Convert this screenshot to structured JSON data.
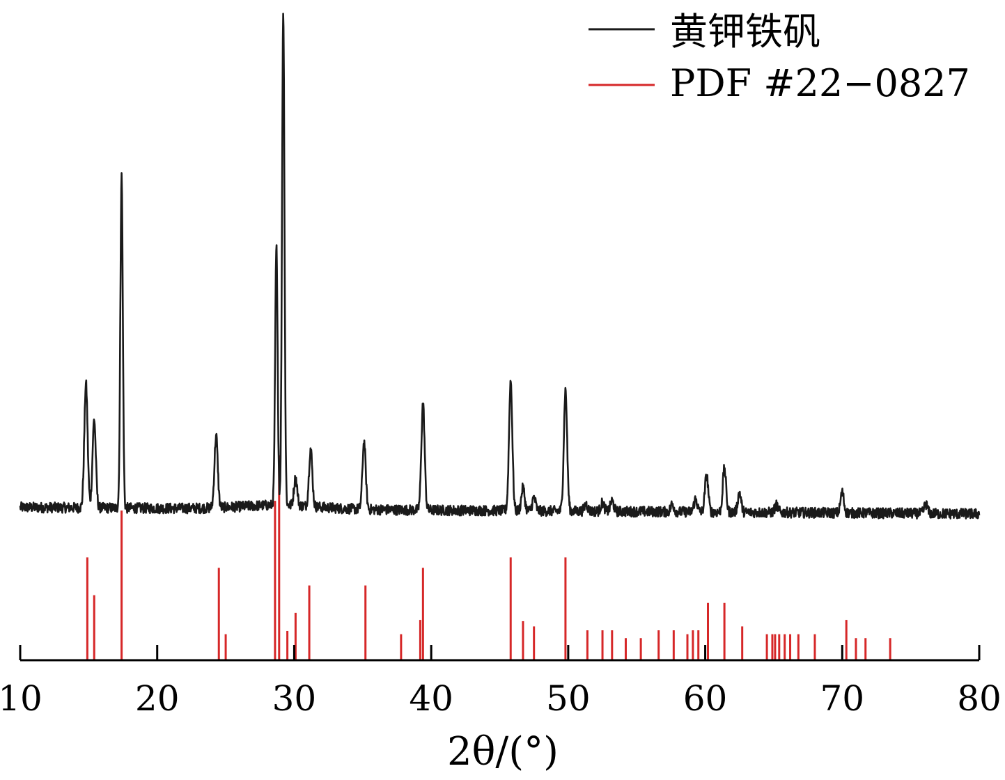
{
  "chart_data": {
    "type": "line",
    "title": "",
    "xlabel": "2θ/(°)",
    "ylabel": "",
    "xlim": [
      10,
      80
    ],
    "ylim": [
      0,
      1
    ],
    "grid": false,
    "legend_position": "top-right",
    "x_ticks": [
      10,
      20,
      30,
      40,
      50,
      60,
      70,
      80
    ],
    "tick_labels": [
      "10",
      "20",
      "30",
      "40",
      "50",
      "60",
      "70",
      "80"
    ],
    "series": [
      {
        "name": "黄钾铁矾",
        "type": "line",
        "color": "#1a1a1a",
        "baseline_start": 0.235,
        "baseline_end": 0.225,
        "peaks": [
          {
            "x": 14.8,
            "y": 0.425
          },
          {
            "x": 15.4,
            "y": 0.37
          },
          {
            "x": 17.4,
            "y": 0.745
          },
          {
            "x": 24.3,
            "y": 0.345
          },
          {
            "x": 28.7,
            "y": 0.635
          },
          {
            "x": 29.2,
            "y": 1.0
          },
          {
            "x": 30.1,
            "y": 0.28
          },
          {
            "x": 31.2,
            "y": 0.325
          },
          {
            "x": 35.1,
            "y": 0.335
          },
          {
            "x": 39.4,
            "y": 0.395
          },
          {
            "x": 45.8,
            "y": 0.43
          },
          {
            "x": 46.7,
            "y": 0.265
          },
          {
            "x": 47.5,
            "y": 0.25
          },
          {
            "x": 49.8,
            "y": 0.415
          },
          {
            "x": 51.3,
            "y": 0.24
          },
          {
            "x": 52.5,
            "y": 0.242
          },
          {
            "x": 53.2,
            "y": 0.245
          },
          {
            "x": 57.6,
            "y": 0.24
          },
          {
            "x": 59.3,
            "y": 0.248
          },
          {
            "x": 60.1,
            "y": 0.285
          },
          {
            "x": 61.4,
            "y": 0.295
          },
          {
            "x": 62.5,
            "y": 0.258
          },
          {
            "x": 65.2,
            "y": 0.238
          },
          {
            "x": 70.0,
            "y": 0.258
          },
          {
            "x": 76.1,
            "y": 0.24
          }
        ]
      },
      {
        "name": "PDF #22−0827",
        "type": "stick",
        "color": "#d62728",
        "sticks": [
          {
            "x": 14.9,
            "y": 0.158
          },
          {
            "x": 15.4,
            "y": 0.1
          },
          {
            "x": 17.4,
            "y": 0.23
          },
          {
            "x": 24.5,
            "y": 0.142
          },
          {
            "x": 25.0,
            "y": 0.04
          },
          {
            "x": 28.6,
            "y": 0.245
          },
          {
            "x": 28.9,
            "y": 0.315
          },
          {
            "x": 29.5,
            "y": 0.045
          },
          {
            "x": 30.1,
            "y": 0.073
          },
          {
            "x": 31.1,
            "y": 0.115
          },
          {
            "x": 35.2,
            "y": 0.115
          },
          {
            "x": 37.8,
            "y": 0.04
          },
          {
            "x": 39.2,
            "y": 0.062
          },
          {
            "x": 39.4,
            "y": 0.142
          },
          {
            "x": 45.8,
            "y": 0.158
          },
          {
            "x": 46.7,
            "y": 0.06
          },
          {
            "x": 47.5,
            "y": 0.052
          },
          {
            "x": 49.8,
            "y": 0.158
          },
          {
            "x": 51.4,
            "y": 0.046
          },
          {
            "x": 52.5,
            "y": 0.046
          },
          {
            "x": 53.2,
            "y": 0.046
          },
          {
            "x": 54.2,
            "y": 0.034
          },
          {
            "x": 55.3,
            "y": 0.034
          },
          {
            "x": 56.6,
            "y": 0.046
          },
          {
            "x": 57.7,
            "y": 0.046
          },
          {
            "x": 58.7,
            "y": 0.04
          },
          {
            "x": 59.1,
            "y": 0.046
          },
          {
            "x": 59.5,
            "y": 0.046
          },
          {
            "x": 60.2,
            "y": 0.088
          },
          {
            "x": 61.4,
            "y": 0.088
          },
          {
            "x": 62.7,
            "y": 0.052
          },
          {
            "x": 64.5,
            "y": 0.04
          },
          {
            "x": 64.9,
            "y": 0.04
          },
          {
            "x": 65.1,
            "y": 0.04
          },
          {
            "x": 65.4,
            "y": 0.04
          },
          {
            "x": 65.8,
            "y": 0.04
          },
          {
            "x": 66.2,
            "y": 0.04
          },
          {
            "x": 66.8,
            "y": 0.04
          },
          {
            "x": 68.0,
            "y": 0.04
          },
          {
            "x": 70.3,
            "y": 0.062
          },
          {
            "x": 71.0,
            "y": 0.034
          },
          {
            "x": 71.7,
            "y": 0.034
          },
          {
            "x": 73.5,
            "y": 0.034
          }
        ]
      }
    ]
  }
}
